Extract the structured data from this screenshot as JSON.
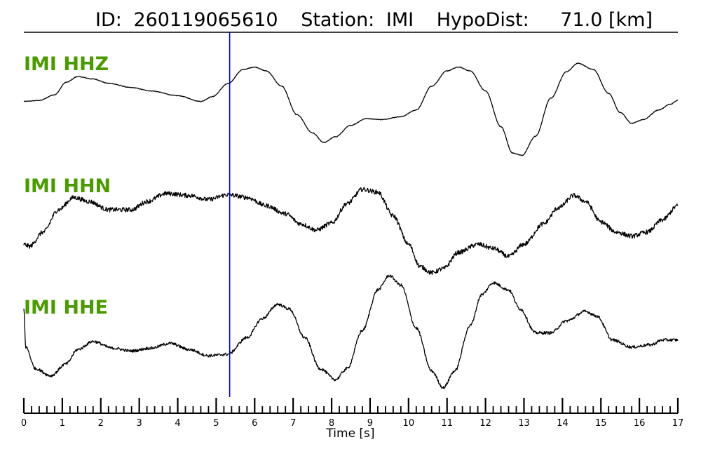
{
  "chart_data": {
    "type": "line",
    "title": {
      "id_label": "ID:",
      "id_value": "260119065610",
      "station_label": "Station:",
      "station_value": "IMI",
      "dist_label": "HypoDist:",
      "dist_value": "71.0 [km]"
    },
    "xlabel": "Time [s]",
    "xlim": [
      0,
      17
    ],
    "x_ticks": [
      "0",
      "1",
      "2",
      "3",
      "4",
      "5",
      "6",
      "7",
      "8",
      "9",
      "10",
      "11",
      "12",
      "13",
      "14",
      "15",
      "16",
      "17"
    ],
    "x_minor_tick_step": 0.2,
    "grid": false,
    "label_color": "#4a9a00",
    "trace_color": "#000000",
    "marker": {
      "time": 5.35,
      "color": "#0000cc"
    },
    "series": [
      {
        "name": "IMI HHZ",
        "noise": 0.006,
        "points": [
          [
            0,
            0.08
          ],
          [
            0.4,
            0.1
          ],
          [
            0.8,
            0.22
          ],
          [
            1.1,
            0.48
          ],
          [
            1.4,
            0.6
          ],
          [
            1.8,
            0.55
          ],
          [
            2.2,
            0.46
          ],
          [
            2.8,
            0.37
          ],
          [
            3.3,
            0.3
          ],
          [
            4.0,
            0.2
          ],
          [
            4.6,
            0.08
          ],
          [
            4.9,
            0.18
          ],
          [
            5.3,
            0.45
          ],
          [
            5.7,
            0.75
          ],
          [
            6.0,
            0.8
          ],
          [
            6.3,
            0.72
          ],
          [
            6.7,
            0.4
          ],
          [
            7.1,
            -0.2
          ],
          [
            7.5,
            -0.58
          ],
          [
            7.8,
            -0.78
          ],
          [
            8.1,
            -0.66
          ],
          [
            8.5,
            -0.42
          ],
          [
            8.9,
            -0.28
          ],
          [
            9.3,
            -0.3
          ],
          [
            9.8,
            -0.24
          ],
          [
            10.2,
            -0.1
          ],
          [
            10.6,
            0.4
          ],
          [
            11.0,
            0.72
          ],
          [
            11.3,
            0.8
          ],
          [
            11.6,
            0.72
          ],
          [
            12.0,
            0.3
          ],
          [
            12.4,
            -0.45
          ],
          [
            12.7,
            -1.0
          ],
          [
            12.95,
            -1.05
          ],
          [
            13.3,
            -0.65
          ],
          [
            13.7,
            0.15
          ],
          [
            14.1,
            0.7
          ],
          [
            14.4,
            0.88
          ],
          [
            14.8,
            0.75
          ],
          [
            15.2,
            0.25
          ],
          [
            15.5,
            -0.15
          ],
          [
            15.8,
            -0.38
          ],
          [
            16.1,
            -0.3
          ],
          [
            16.5,
            -0.1
          ],
          [
            16.8,
            0.02
          ],
          [
            17,
            0.1
          ]
        ]
      },
      {
        "name": "IMI HHN",
        "noise": 0.055,
        "points": [
          [
            0,
            -0.9
          ],
          [
            0.15,
            -0.95
          ],
          [
            0.5,
            -0.6
          ],
          [
            0.9,
            -0.05
          ],
          [
            1.3,
            0.25
          ],
          [
            1.7,
            0.15
          ],
          [
            2.2,
            -0.05
          ],
          [
            2.8,
            -0.05
          ],
          [
            3.2,
            0.15
          ],
          [
            3.7,
            0.35
          ],
          [
            4.3,
            0.3
          ],
          [
            4.8,
            0.2
          ],
          [
            5.3,
            0.32
          ],
          [
            5.8,
            0.25
          ],
          [
            6.3,
            0.05
          ],
          [
            6.8,
            -0.15
          ],
          [
            7.2,
            -0.4
          ],
          [
            7.6,
            -0.55
          ],
          [
            8.0,
            -0.38
          ],
          [
            8.4,
            0.1
          ],
          [
            8.8,
            0.45
          ],
          [
            9.2,
            0.38
          ],
          [
            9.6,
            -0.2
          ],
          [
            10.0,
            -0.9
          ],
          [
            10.3,
            -1.45
          ],
          [
            10.6,
            -1.6
          ],
          [
            10.9,
            -1.5
          ],
          [
            11.3,
            -1.1
          ],
          [
            11.8,
            -0.9
          ],
          [
            12.2,
            -1.0
          ],
          [
            12.6,
            -1.2
          ],
          [
            13.0,
            -0.9
          ],
          [
            13.5,
            -0.4
          ],
          [
            13.9,
            0.0
          ],
          [
            14.3,
            0.3
          ],
          [
            14.6,
            0.15
          ],
          [
            15.0,
            -0.35
          ],
          [
            15.4,
            -0.6
          ],
          [
            15.8,
            -0.7
          ],
          [
            16.2,
            -0.6
          ],
          [
            16.6,
            -0.3
          ],
          [
            17,
            0.05
          ]
        ]
      },
      {
        "name": "IMI HHE",
        "noise": 0.03,
        "points": [
          [
            0,
            0.7
          ],
          [
            0.05,
            -0.1
          ],
          [
            0.3,
            -0.55
          ],
          [
            0.7,
            -0.7
          ],
          [
            1.1,
            -0.45
          ],
          [
            1.4,
            -0.15
          ],
          [
            1.8,
            0.02
          ],
          [
            2.3,
            -0.12
          ],
          [
            2.8,
            -0.18
          ],
          [
            3.3,
            -0.12
          ],
          [
            3.8,
            -0.02
          ],
          [
            4.3,
            -0.15
          ],
          [
            4.8,
            -0.28
          ],
          [
            5.3,
            -0.25
          ],
          [
            5.8,
            0.1
          ],
          [
            6.2,
            0.5
          ],
          [
            6.6,
            0.8
          ],
          [
            6.9,
            0.7
          ],
          [
            7.3,
            0.1
          ],
          [
            7.7,
            -0.55
          ],
          [
            8.1,
            -0.78
          ],
          [
            8.4,
            -0.55
          ],
          [
            8.8,
            0.25
          ],
          [
            9.2,
            1.1
          ],
          [
            9.5,
            1.4
          ],
          [
            9.8,
            1.2
          ],
          [
            10.2,
            0.3
          ],
          [
            10.6,
            -0.6
          ],
          [
            10.9,
            -0.95
          ],
          [
            11.2,
            -0.6
          ],
          [
            11.6,
            0.35
          ],
          [
            11.9,
            1.0
          ],
          [
            12.2,
            1.25
          ],
          [
            12.6,
            1.1
          ],
          [
            12.9,
            0.7
          ],
          [
            13.3,
            0.2
          ],
          [
            13.7,
            0.2
          ],
          [
            14.1,
            0.45
          ],
          [
            14.6,
            0.65
          ],
          [
            14.9,
            0.55
          ],
          [
            15.3,
            0.05
          ],
          [
            15.8,
            -0.1
          ],
          [
            16.3,
            -0.05
          ],
          [
            16.6,
            0.05
          ],
          [
            17,
            0.05
          ]
        ]
      }
    ]
  }
}
